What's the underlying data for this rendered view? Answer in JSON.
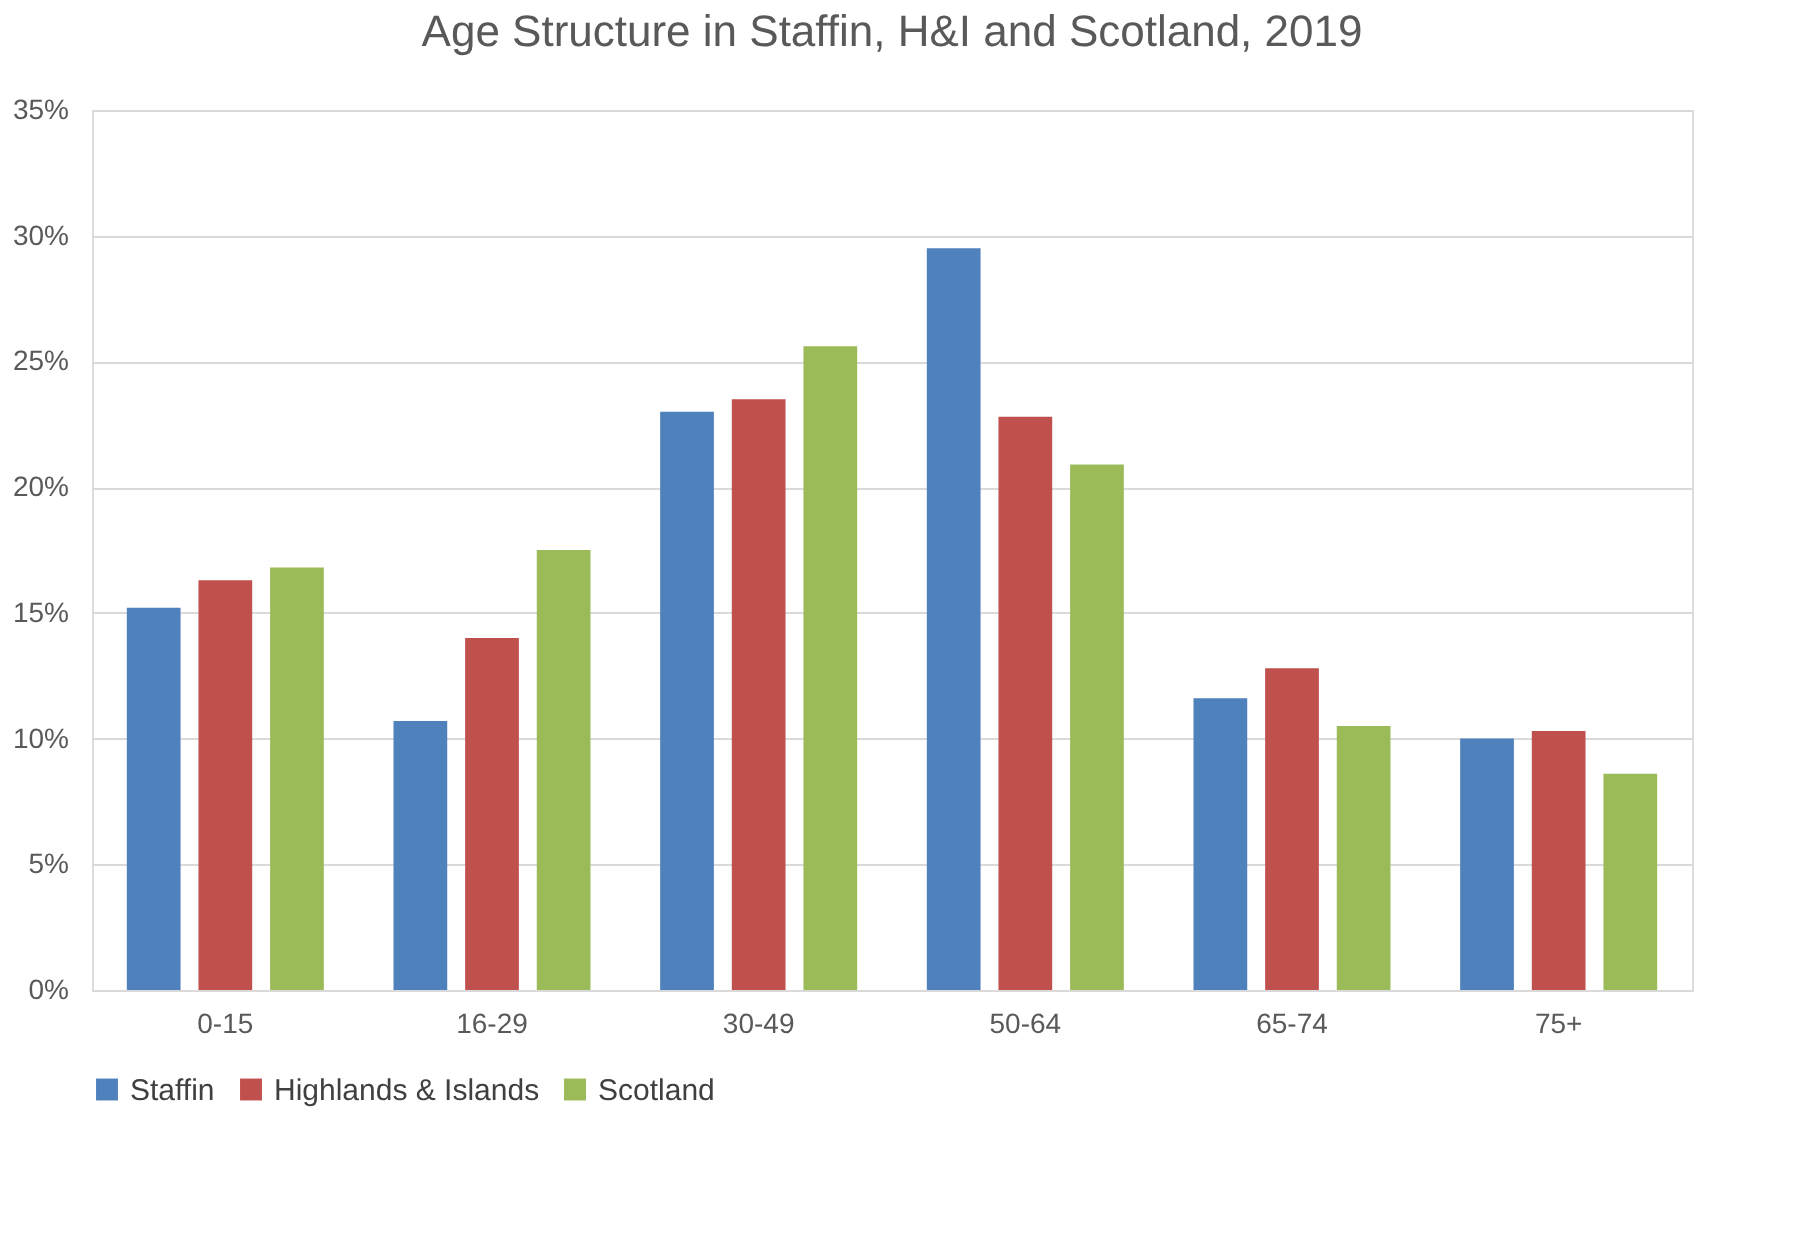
{
  "chart_data": {
    "type": "bar",
    "title": "Age Structure in Staffin, H&I and Scotland, 2019",
    "categories": [
      "0-15",
      "16-29",
      "30-49",
      "50-64",
      "65-74",
      "75+"
    ],
    "series": [
      {
        "name": "Staffin",
        "color": "#4f81bd",
        "values": [
          15.2,
          10.7,
          23.0,
          29.5,
          11.6,
          10.0
        ]
      },
      {
        "name": "Highlands & Islands",
        "color": "#c0504d",
        "values": [
          16.3,
          14.0,
          23.5,
          22.8,
          12.8,
          10.3
        ]
      },
      {
        "name": "Scotland",
        "color": "#9bbb59",
        "values": [
          16.8,
          17.5,
          25.6,
          20.9,
          10.5,
          8.6
        ]
      }
    ],
    "ylim": [
      0,
      35
    ],
    "yticks": [
      {
        "value": 0,
        "label": "0%"
      },
      {
        "value": 5,
        "label": "5%"
      },
      {
        "value": 10,
        "label": "10%"
      },
      {
        "value": 15,
        "label": "15%"
      },
      {
        "value": 20,
        "label": "20%"
      },
      {
        "value": 25,
        "label": "25%"
      },
      {
        "value": 30,
        "label": "30%"
      },
      {
        "value": 35,
        "label": "35%"
      }
    ],
    "grid": "y",
    "legend": "bottom"
  }
}
